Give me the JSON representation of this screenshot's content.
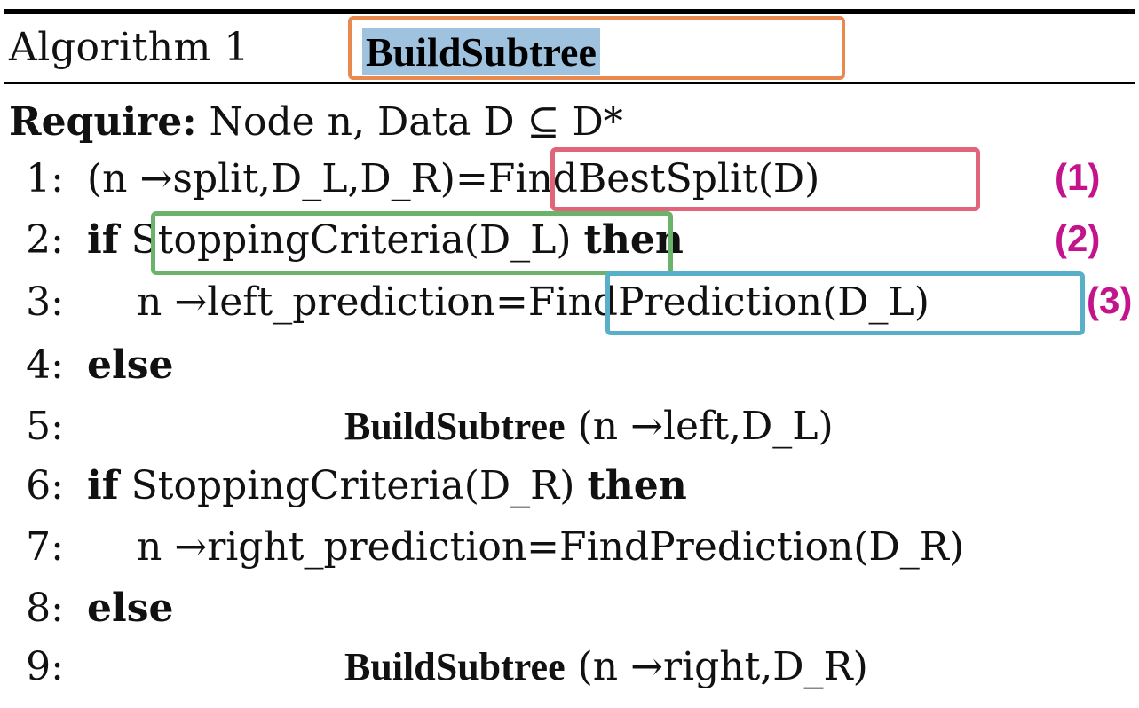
{
  "algorithm": {
    "label": "Algorithm 1",
    "name": "BuildSubtree"
  },
  "require": {
    "keyword": "Require:",
    "text": "Node n, Data D ⊆ D*"
  },
  "lines": [
    {
      "num": "1:",
      "text": "(n →split,D_L,D_R)=FindBestSplit(D)"
    },
    {
      "num": "2:",
      "kw": "if",
      "text": "StoppingCriteria(D_L)",
      "kw2": "then"
    },
    {
      "num": "3:",
      "text": "n →left_prediction=FindPrediction(D_L)"
    },
    {
      "num": "4:",
      "kw": "else"
    },
    {
      "num": "5:",
      "call": "BuildSubtree",
      "text": "(n →left,D_L)"
    },
    {
      "num": "6:",
      "kw": "if",
      "text": "StoppingCriteria(D_R)",
      "kw2": "then"
    },
    {
      "num": "7:",
      "text": "n →right_prediction=FindPrediction(D_R)"
    },
    {
      "num": "8:",
      "kw": "else"
    },
    {
      "num": "9:",
      "call": "BuildSubtree",
      "text": "(n →right,D_R)"
    }
  ],
  "annotations": [
    {
      "label": "(1)",
      "target": "FindBestSplit(D)"
    },
    {
      "label": "(2)",
      "target": "StoppingCriteria(D_L)"
    },
    {
      "label": "(3)",
      "target": "FindPrediction(D_L)"
    }
  ],
  "colors": {
    "name_box": "#E88A4F",
    "name_highlight": "#9FC3DE",
    "box1": "#E0647A",
    "box2": "#6BB36B",
    "box3": "#5AAFC8",
    "tags": "#C4148C"
  }
}
